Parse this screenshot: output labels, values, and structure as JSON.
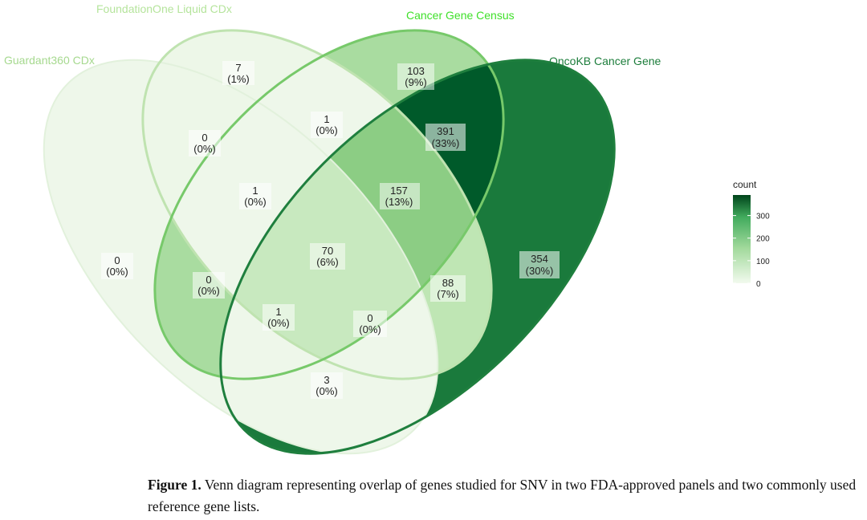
{
  "sets": [
    {
      "id": "g360",
      "name": "Guardant360 CDx",
      "color": "#a6d98f"
    },
    {
      "id": "f1",
      "name": "FoundationOne Liquid CDx",
      "color": "#b5e49c"
    },
    {
      "id": "cgc",
      "name": "Cancer Gene Census",
      "color": "#3fe02a"
    },
    {
      "id": "okb",
      "name": "OncoKB Cancer Gene",
      "color": "#1c7d3b"
    }
  ],
  "regions": [
    {
      "id": "f1_only",
      "count": "7",
      "pct": "(1%)",
      "value": 7
    },
    {
      "id": "cgc_only",
      "count": "103",
      "pct": "(9%)",
      "value": 103
    },
    {
      "id": "f1_cgc",
      "count": "1",
      "pct": "(0%)",
      "value": 1
    },
    {
      "id": "cgc_okb",
      "count": "391",
      "pct": "(33%)",
      "value": 391
    },
    {
      "id": "g360_f1",
      "count": "0",
      "pct": "(0%)",
      "value": 0
    },
    {
      "id": "g360_f1_cgc",
      "count": "1",
      "pct": "(0%)",
      "value": 1
    },
    {
      "id": "f1_cgc_okb",
      "count": "157",
      "pct": "(13%)",
      "value": 157
    },
    {
      "id": "all_four",
      "count": "70",
      "pct": "(6%)",
      "value": 70
    },
    {
      "id": "g360_only",
      "count": "0",
      "pct": "(0%)",
      "value": 0
    },
    {
      "id": "g360_f1_okb_left",
      "count": "0",
      "pct": "(0%)",
      "value": 0
    },
    {
      "id": "okb_only",
      "count": "354",
      "pct": "(30%)",
      "value": 354
    },
    {
      "id": "f1_okb",
      "count": "88",
      "pct": "(7%)",
      "value": 88
    },
    {
      "id": "g360_f1_okb",
      "count": "1",
      "pct": "(0%)",
      "value": 1
    },
    {
      "id": "g360_cgc_okb",
      "count": "0",
      "pct": "(0%)",
      "value": 0
    },
    {
      "id": "g360_okb",
      "count": "3",
      "pct": "(0%)",
      "value": 3
    }
  ],
  "legend": {
    "title": "count",
    "ticks": [
      {
        "label": "300",
        "value": 300
      },
      {
        "label": "200",
        "value": 200
      },
      {
        "label": "100",
        "value": 100
      },
      {
        "label": "0",
        "value": 0
      }
    ],
    "max_value": 391,
    "color_low": "#f2faee",
    "color_high": "#00441b"
  },
  "caption": {
    "label": "Figure 1.",
    "text": " Venn diagram representing overlap of genes studied for SNV in two FDA-approved panels and two commonly used reference gene lists."
  }
}
